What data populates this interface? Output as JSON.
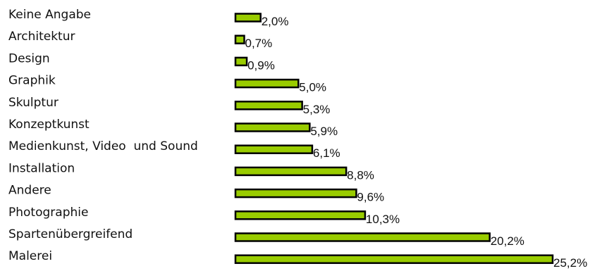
{
  "chart_data": {
    "type": "bar",
    "orientation": "horizontal",
    "categories": [
      "Keine Angabe",
      "Architektur",
      "Design",
      "Graphik",
      "Skulptur",
      "Konzeptkunst",
      "Medienkunst, Video  und Sound",
      "Installation",
      "Andere",
      "Photographie",
      "Spartenübergreifend",
      "Malerei"
    ],
    "values": [
      2.0,
      0.7,
      0.9,
      5.0,
      5.3,
      5.9,
      6.1,
      8.8,
      9.6,
      10.3,
      20.2,
      25.2
    ],
    "value_labels": [
      "2,0%",
      "0,7%",
      "0,9%",
      "5,0%",
      "5,3%",
      "5,9%",
      "6,1%",
      "8,8%",
      "9,6%",
      "10,3%",
      "20,2%",
      "25,2%"
    ],
    "unit": "%",
    "bar_color": "#99cc00",
    "bar_border_color": "#000000",
    "grid": false,
    "legend": "none",
    "xlim": [
      0,
      25.2
    ]
  }
}
